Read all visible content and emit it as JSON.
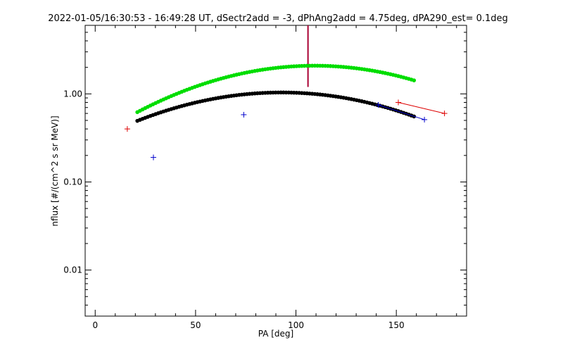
{
  "chart_data": {
    "type": "scatter",
    "title": "2022-01-05/16:30:53 - 16:49:28 UT, dSectr2add = -3, dPhAng2add = 4.75deg, dPA290_est=   0.1deg",
    "xlabel": "PA [deg]",
    "ylabel": "nflux [#/(cm^2 s sr MeV)]",
    "xlim": [
      -5,
      185
    ],
    "ylim": [
      0.003,
      6.0
    ],
    "yscale": "log",
    "x_ticks": [
      0,
      50,
      100,
      150
    ],
    "x_tick_labels": [
      "0",
      "50",
      "100",
      "150"
    ],
    "y_ticks": [
      0.01,
      0.1,
      1.0
    ],
    "y_tick_labels": [
      "0.01",
      "0.10",
      "1.00"
    ],
    "grid": false,
    "series": [
      {
        "color": "#000000",
        "marker": "dot",
        "fit": {
          "a": -0.5222,
          "b": 0.0116,
          "c": -6.25e-05
        },
        "x_range": [
          21,
          160
        ]
      },
      {
        "color": "#00dd00",
        "marker": "dot",
        "fit": {
          "a": -0.4884,
          "b": 0.0148,
          "c": -6.774e-05
        },
        "x_range": [
          21,
          160
        ]
      },
      {
        "color": "#0000cc",
        "marker": "plus",
        "connect_last": true,
        "points": [
          {
            "x": 29,
            "y": 0.19
          },
          {
            "x": 74,
            "y": 0.58
          },
          {
            "x": 141,
            "y": 0.75
          },
          {
            "x": 164,
            "y": 0.51
          }
        ]
      },
      {
        "color": "#dd0000",
        "marker": "plus",
        "connect_last": true,
        "points": [
          {
            "x": 16,
            "y": 0.4
          },
          {
            "x": 151,
            "y": 0.8
          },
          {
            "x": 174,
            "y": 0.6
          }
        ]
      }
    ],
    "vertical_line": {
      "x": 106,
      "y_from": 1.2,
      "y_to": 6.0,
      "color": "#aa0033"
    }
  }
}
